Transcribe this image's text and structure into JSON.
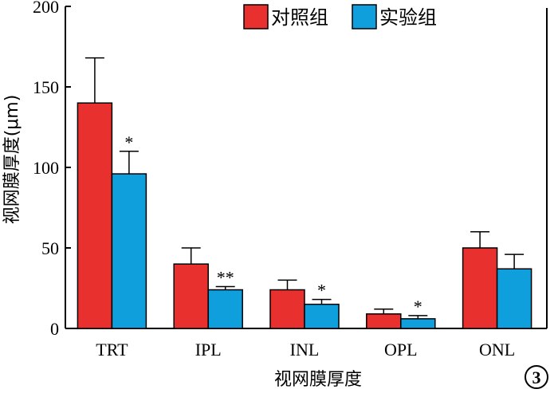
{
  "chart_data": {
    "type": "bar",
    "xlabel": "视网膜厚度",
    "ylabel": "视网膜厚度(μm)",
    "ylim": [
      0,
      200
    ],
    "yticks": [
      0,
      50,
      100,
      150,
      200
    ],
    "categories": [
      "TRT",
      "IPL",
      "INL",
      "OPL",
      "ONL"
    ],
    "series": [
      {
        "name": "对照组",
        "color": "#e8312f",
        "values": [
          140,
          40,
          24,
          9,
          50
        ],
        "errors": [
          28,
          10,
          6,
          3,
          10
        ]
      },
      {
        "name": "实验组",
        "color": "#0f9fdc",
        "values": [
          96,
          24,
          15,
          6,
          37
        ],
        "errors": [
          14,
          2,
          3,
          2,
          9
        ]
      }
    ],
    "significance": [
      "*",
      "**",
      "*",
      "*",
      ""
    ],
    "legend_position": "top-right",
    "grid": false,
    "panel_label": "3"
  }
}
